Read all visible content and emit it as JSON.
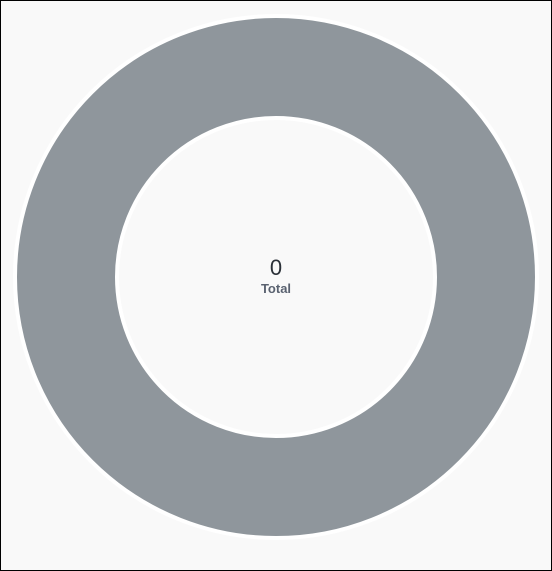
{
  "chart_data": {
    "type": "pie",
    "variant": "donut",
    "total": {
      "value": "0",
      "label": "Total"
    },
    "series": [
      {
        "values": []
      }
    ],
    "empty_ring_color": "#8f969c",
    "ring_stroke_color": "#ffffff",
    "background_color": "#f9f9f9"
  }
}
